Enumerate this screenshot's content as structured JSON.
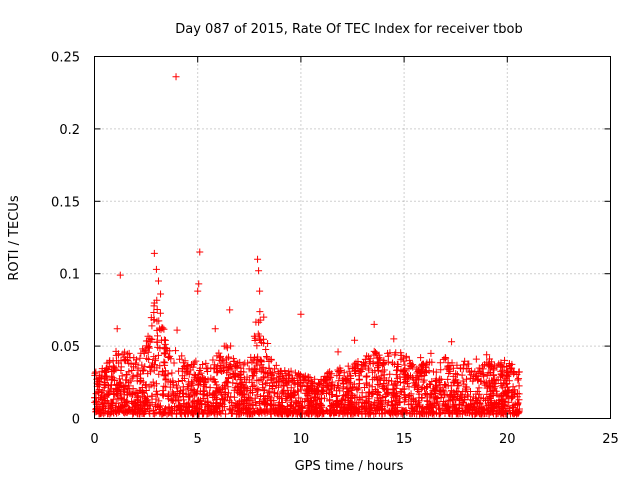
{
  "chart_data": {
    "type": "scatter",
    "title": "Day 087 of 2015, Rate Of TEC Index for receiver tbob",
    "xlabel": "GPS time / hours",
    "ylabel": "ROTI / TECUs",
    "xlim": [
      0,
      25
    ],
    "ylim": [
      0,
      0.25
    ],
    "x_ticks": [
      "0",
      "5",
      "10",
      "15",
      "20",
      "25"
    ],
    "y_ticks": [
      "0",
      "0.05",
      "0.1",
      "0.15",
      "0.2",
      "0.25"
    ],
    "grid": true,
    "marker": "+",
    "color": "#ff0000",
    "x_data_extent": [
      0,
      20.6
    ],
    "highlighted_points": [
      {
        "x": 3.95,
        "y": 0.236
      },
      {
        "x": 5.1,
        "y": 0.115
      },
      {
        "x": 2.9,
        "y": 0.114
      },
      {
        "x": 7.9,
        "y": 0.11
      },
      {
        "x": 1.25,
        "y": 0.099
      },
      {
        "x": 3.0,
        "y": 0.103
      },
      {
        "x": 7.95,
        "y": 0.102
      },
      {
        "x": 3.1,
        "y": 0.095
      },
      {
        "x": 5.05,
        "y": 0.093
      },
      {
        "x": 5.0,
        "y": 0.088
      },
      {
        "x": 8.0,
        "y": 0.088
      },
      {
        "x": 3.2,
        "y": 0.086
      },
      {
        "x": 6.55,
        "y": 0.075
      },
      {
        "x": 10.0,
        "y": 0.072
      },
      {
        "x": 8.2,
        "y": 0.07
      },
      {
        "x": 13.55,
        "y": 0.065
      },
      {
        "x": 1.1,
        "y": 0.062
      },
      {
        "x": 5.85,
        "y": 0.062
      },
      {
        "x": 4.0,
        "y": 0.061
      },
      {
        "x": 14.5,
        "y": 0.055
      },
      {
        "x": 17.3,
        "y": 0.053
      },
      {
        "x": 12.6,
        "y": 0.054
      },
      {
        "x": 11.8,
        "y": 0.046
      },
      {
        "x": 16.3,
        "y": 0.045
      },
      {
        "x": 19.0,
        "y": 0.044
      },
      {
        "x": 15.8,
        "y": 0.042
      },
      {
        "x": 18.5,
        "y": 0.041
      },
      {
        "x": 20.1,
        "y": 0.038
      }
    ],
    "density_profile": {
      "x": [
        0,
        0.5,
        1,
        1.5,
        2,
        2.5,
        3,
        3.5,
        4,
        4.5,
        5,
        5.5,
        6,
        6.5,
        7,
        7.5,
        8,
        8.5,
        9,
        9.5,
        10,
        10.5,
        11,
        11.5,
        12,
        12.5,
        13,
        13.5,
        14,
        14.5,
        15,
        15.5,
        16,
        16.5,
        17,
        17.5,
        18,
        18.5,
        19,
        19.5,
        20,
        20.5
      ],
      "upper_envelope": [
        0.03,
        0.033,
        0.045,
        0.044,
        0.04,
        0.05,
        0.085,
        0.05,
        0.045,
        0.035,
        0.04,
        0.035,
        0.043,
        0.05,
        0.038,
        0.035,
        0.08,
        0.04,
        0.033,
        0.03,
        0.028,
        0.025,
        0.028,
        0.03,
        0.033,
        0.038,
        0.035,
        0.05,
        0.04,
        0.045,
        0.042,
        0.033,
        0.038,
        0.035,
        0.04,
        0.035,
        0.038,
        0.032,
        0.04,
        0.035,
        0.038,
        0.03
      ]
    }
  }
}
